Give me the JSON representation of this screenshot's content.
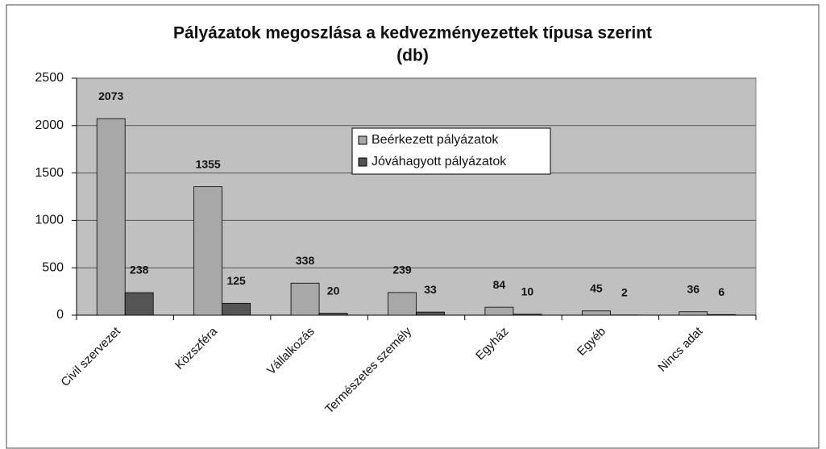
{
  "chart_data": {
    "type": "bar",
    "title": "Pályázatok megoszlása a kedvezményezettek típusa szerint",
    "subtitle": "(db)",
    "categories": [
      "Civil szervezet",
      "Közszféra",
      "Vállalkozás",
      "Természetes személy",
      "Egyház",
      "Egyéb",
      "Nincs adat"
    ],
    "series": [
      {
        "name": "Beérkezett pályázatok",
        "color": "#a8a8a8",
        "values": [
          2073,
          1355,
          338,
          239,
          84,
          45,
          36
        ]
      },
      {
        "name": "Jóváhagyott pályázatok",
        "color": "#555555",
        "values": [
          238,
          125,
          20,
          33,
          10,
          2,
          6
        ]
      }
    ],
    "ylim": [
      0,
      2500
    ],
    "yticks": [
      0,
      500,
      1000,
      1500,
      2000,
      2500
    ],
    "grid": true,
    "legend": "center"
  }
}
